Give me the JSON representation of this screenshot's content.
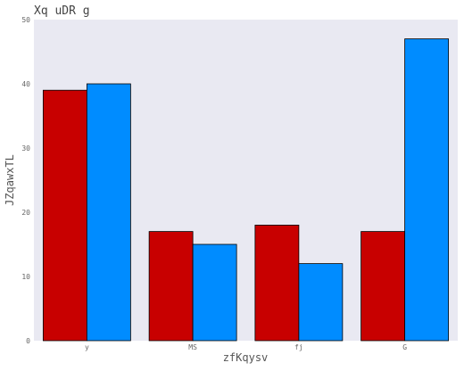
{
  "chart_data": {
    "type": "bar",
    "title": "Xq uDR g",
    "xlabel": "zfKqysv",
    "ylabel": "JZqawxTL",
    "categories": [
      "y",
      "MS",
      "fj",
      "G"
    ],
    "series": [
      {
        "values": [
          39,
          17,
          18,
          17
        ],
        "color": "#c80000"
      },
      {
        "values": [
          40,
          15,
          12,
          47
        ],
        "color": "#008cff"
      }
    ],
    "ylim": [
      0,
      50
    ],
    "yticks": [
      0,
      10,
      20,
      30,
      40,
      50
    ],
    "grid": false,
    "plot_background": "#e9e9f2",
    "legend": "none"
  }
}
